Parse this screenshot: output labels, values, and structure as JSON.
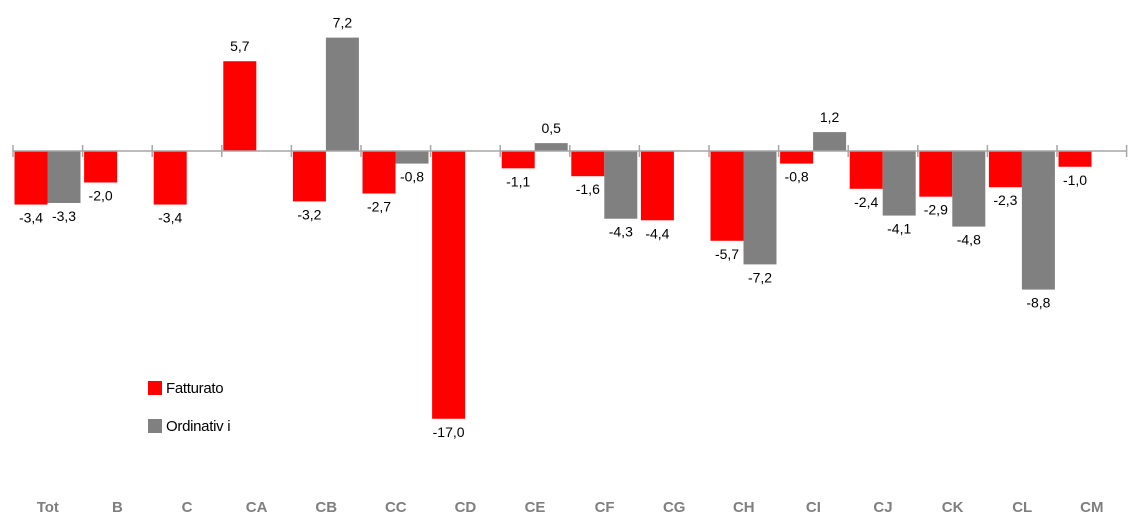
{
  "chart_data": {
    "type": "bar",
    "categories": [
      "Tot",
      "B",
      "C",
      "CA",
      "CB",
      "CC",
      "CD",
      "CE",
      "CF",
      "CG",
      "CH",
      "CI",
      "CJ",
      "CK",
      "CL",
      "CM"
    ],
    "series": [
      {
        "name": "Fatturato",
        "color": "#ff0000",
        "values": [
          -3.4,
          -2.0,
          -3.4,
          5.7,
          -3.2,
          -2.7,
          -17.0,
          -1.1,
          -1.6,
          -4.4,
          -5.7,
          -0.8,
          -2.4,
          -2.9,
          -2.3,
          -1.0
        ],
        "labels": [
          "-3,4",
          "-2,0",
          "-3,4",
          "5,7",
          "-3,2",
          "-2,7",
          "-17,0",
          "-1,1",
          "-1,6",
          "-4,4",
          "-5,7",
          "-0,8",
          "-2,4",
          "-2,9",
          "-2,3",
          "-1,0"
        ]
      },
      {
        "name": "Ordinativ i",
        "color": "#808080",
        "values": [
          -3.3,
          null,
          null,
          null,
          7.2,
          -0.8,
          null,
          0.5,
          -4.3,
          null,
          -7.2,
          1.2,
          -4.1,
          -4.8,
          -8.8,
          null
        ],
        "labels": [
          "-3,3",
          null,
          null,
          null,
          "7,2",
          "-0,8",
          null,
          "0,5",
          "-4,3",
          null,
          "-7,2",
          "1,2",
          "-4,1",
          "-4,8",
          "-8,8",
          null
        ]
      }
    ],
    "ylim": [
      -19,
      8.5
    ],
    "grid": false,
    "legend_position": "inside-lower-left",
    "title": "",
    "xlabel": "",
    "ylabel": ""
  }
}
